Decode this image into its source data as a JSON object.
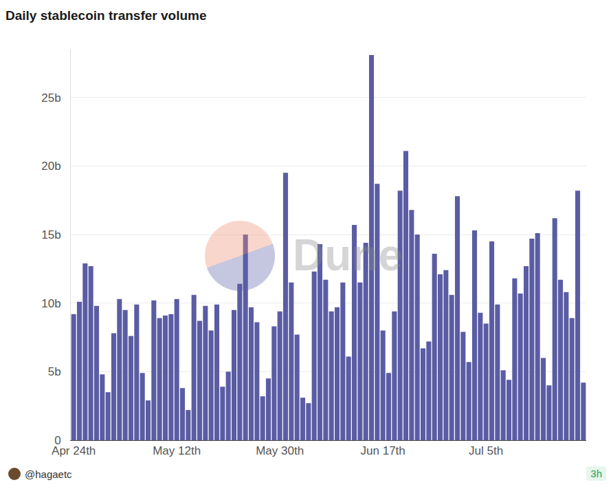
{
  "chart_data": {
    "type": "bar",
    "title": "Daily stablecoin transfer volume",
    "categories": [
      "Apr 24th",
      null,
      null,
      null,
      null,
      null,
      null,
      null,
      null,
      null,
      null,
      null,
      null,
      null,
      null,
      null,
      null,
      null,
      "May 12th",
      null,
      null,
      null,
      null,
      null,
      null,
      null,
      null,
      null,
      null,
      null,
      null,
      null,
      null,
      null,
      null,
      null,
      "May 30th",
      null,
      null,
      null,
      null,
      null,
      null,
      null,
      null,
      null,
      null,
      null,
      null,
      null,
      null,
      null,
      null,
      null,
      "Jun 17th",
      null,
      null,
      null,
      null,
      null,
      null,
      null,
      null,
      null,
      null,
      null,
      null,
      null,
      null,
      null,
      null,
      null,
      "Jul 5th",
      null,
      null,
      null,
      null,
      null,
      null,
      null,
      null,
      null,
      null,
      null,
      null,
      null,
      null,
      null,
      null,
      null
    ],
    "values": [
      9.2,
      10.1,
      12.9,
      12.7,
      9.8,
      4.8,
      3.5,
      7.8,
      10.3,
      9.5,
      7.6,
      9.9,
      4.9,
      2.9,
      10.2,
      8.9,
      9.1,
      9.2,
      10.3,
      3.8,
      2.2,
      10.6,
      8.7,
      9.8,
      8.0,
      9.9,
      3.9,
      5.0,
      9.5,
      11.4,
      15.0,
      9.7,
      8.6,
      3.2,
      4.5,
      8.3,
      9.4,
      19.5,
      11.5,
      7.7,
      3.1,
      2.7,
      12.3,
      14.3,
      11.7,
      9.4,
      9.7,
      11.5,
      6.1,
      15.7,
      11.5,
      14.4,
      28.1,
      18.7,
      8.0,
      4.9,
      9.4,
      18.2,
      21.1,
      16.8,
      15.0,
      6.7,
      7.2,
      13.6,
      12.1,
      12.4,
      10.6,
      17.8,
      7.9,
      5.7,
      15.3,
      9.3,
      8.5,
      14.5,
      9.9,
      5.1,
      4.4,
      11.8,
      10.7,
      12.7,
      14.7,
      15.1,
      6.0,
      4.0,
      16.2,
      11.7,
      10.8,
      8.9,
      18.2,
      4.2
    ],
    "color": "#5a5ca4",
    "ylim": [
      0,
      28.5
    ],
    "yticks": [
      0,
      {
        "value": 5,
        "label": "5b"
      },
      {
        "value": 10,
        "label": "10b"
      },
      {
        "value": 15,
        "label": "15b"
      },
      {
        "value": 20,
        "label": "20b"
      },
      {
        "value": 25,
        "label": "25b"
      }
    ],
    "grid": true,
    "annotations": [
      "Dune",
      "@hagaetc",
      "3h"
    ]
  }
}
